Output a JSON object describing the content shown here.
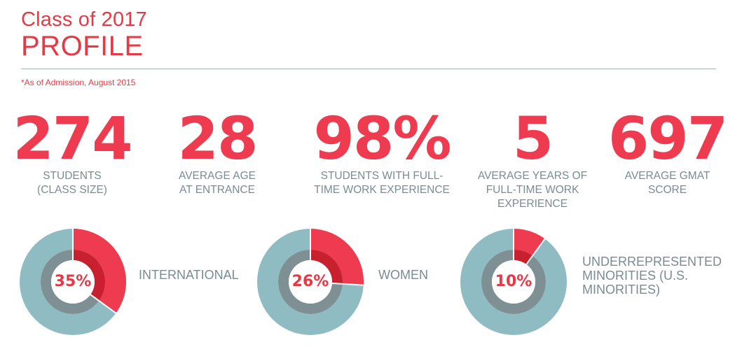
{
  "header": {
    "title_line1": "Class of 2017",
    "title_line2": "PROFILE",
    "note": "*As of Admission, August 2015"
  },
  "colors": {
    "accent": "#ef3b4f",
    "accent_dark": "#c8202f",
    "ring_teal": "#8fbcc2",
    "ring_inner": "#7e9094",
    "text_gray": "#7a8c90"
  },
  "stats": [
    {
      "value": "274",
      "label": "STUDENTS\n(CLASS SIZE)"
    },
    {
      "value": "28",
      "label": "AVERAGE AGE\nAT ENTRANCE"
    },
    {
      "value": "98%",
      "label": "STUDENTS WITH FULL-\nTIME WORK EXPERIENCE"
    },
    {
      "value": "5",
      "label": "AVERAGE YEARS OF\nFULL-TIME WORK\nEXPERIENCE"
    },
    {
      "value": "697",
      "label": "AVERAGE GMAT\nSCORE"
    }
  ],
  "chart_data": {
    "type": "pie",
    "donuts": [
      {
        "percent": 35,
        "value_label": "35%",
        "label": "INTERNATIONAL"
      },
      {
        "percent": 26,
        "value_label": "26%",
        "label": "WOMEN"
      },
      {
        "percent": 10,
        "value_label": "10%",
        "label": "UNDERREPRESENTED\nMINORITIES (U.S.\nMINORITIES)"
      }
    ]
  }
}
